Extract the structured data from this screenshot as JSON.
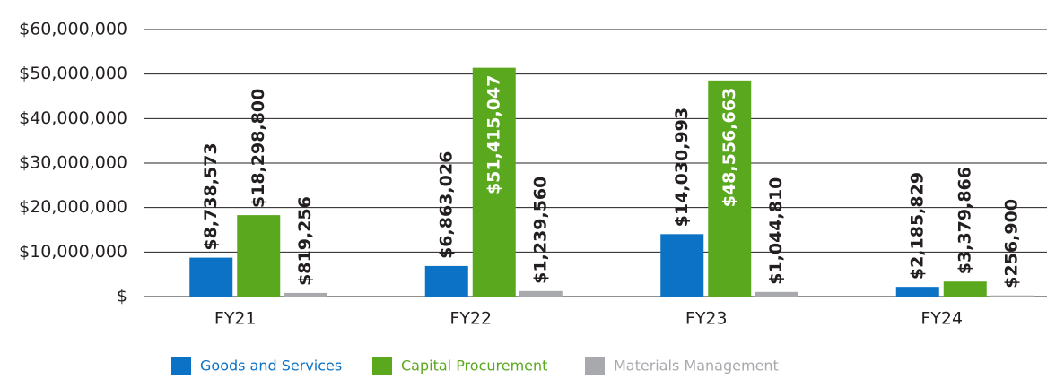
{
  "chart_data": {
    "type": "bar",
    "categories": [
      "FY21",
      "FY22",
      "FY23",
      "FY24"
    ],
    "series": [
      {
        "name": "Goods and Services",
        "color": "#0b72c6",
        "values": [
          8738573,
          6863026,
          14030993,
          2185829
        ],
        "value_labels": [
          "$8,738,573",
          "$6,863,026",
          "$14,030,993",
          "$2,185,829"
        ]
      },
      {
        "name": "Capital Procurement",
        "color": "#5aa81e",
        "values": [
          18298800,
          51415047,
          48556663,
          3379866
        ],
        "value_labels": [
          "$18,298,800",
          "$51,415,047",
          "$48,556,663",
          "$3,379,866"
        ]
      },
      {
        "name": "Materials Management",
        "color": "#a7a9ac",
        "values": [
          819256,
          1239560,
          1044810,
          256900
        ],
        "value_labels": [
          "$819,256",
          "$1,239,560",
          "$1,044,810",
          "$256,900"
        ]
      }
    ],
    "ylim": [
      0,
      60000000
    ],
    "yticks": [
      {
        "value": 0,
        "label": "$"
      },
      {
        "value": 10000000,
        "label": "$10,000,000"
      },
      {
        "value": 20000000,
        "label": "$20,000,000"
      },
      {
        "value": 30000000,
        "label": "$30,000,000"
      },
      {
        "value": 40000000,
        "label": "$40,000,000"
      },
      {
        "value": 50000000,
        "label": "$50,000,000"
      },
      {
        "value": 60000000,
        "label": "$60,000,000"
      }
    ],
    "grid": true,
    "legend": "bottom"
  }
}
